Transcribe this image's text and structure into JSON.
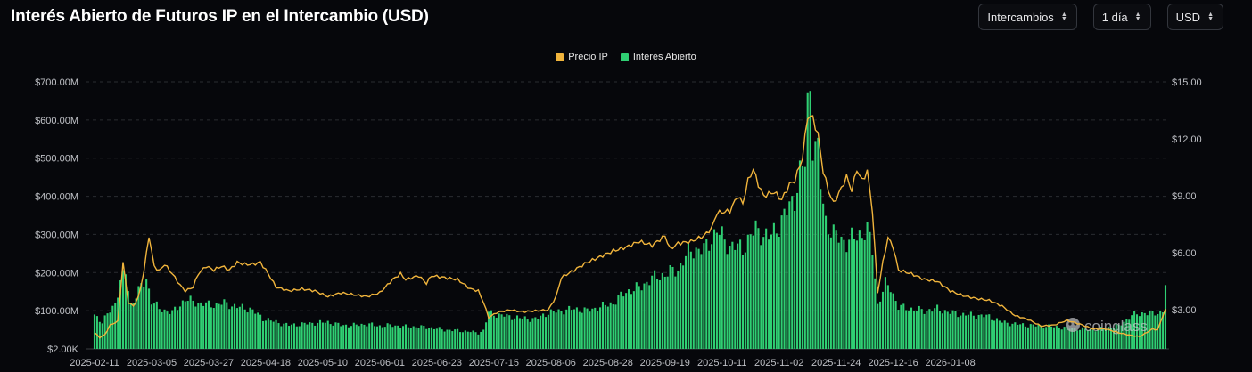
{
  "header": {
    "title": "Interés Abierto de Futuros IP en el Intercambio (USD)",
    "controls": [
      {
        "label": "Intercambios"
      },
      {
        "label": "1 día"
      },
      {
        "label": "USD"
      }
    ]
  },
  "watermark": "coinglass",
  "colors": {
    "price": "#f0b43c",
    "oi": "#2fcf73",
    "grid": "#2a2c31",
    "background": "#06070b"
  },
  "chart_data": {
    "type": "bar",
    "title": "Interés Abierto de Futuros IP en el Intercambio (USD)",
    "legend": {
      "position": "top-center",
      "entries": [
        "Precio IP",
        "Interés Abierto"
      ]
    },
    "x_ticks": [
      "2025-02-11",
      "2025-03-05",
      "2025-03-27",
      "2025-04-18",
      "2025-05-10",
      "2025-06-01",
      "2025-06-23",
      "2025-07-15",
      "2025-08-06",
      "2025-08-28",
      "2025-09-19",
      "2025-10-11",
      "2025-11-02",
      "2025-11-24",
      "2025-12-16",
      "2026-01-08"
    ],
    "y_left_ticks": [
      "$2.00K",
      "$100.00M",
      "$200.00M",
      "$300.00M",
      "$400.00M",
      "$500.00M",
      "$600.00M",
      "$700.00M"
    ],
    "y_right_ticks": [
      "$3.00",
      "$6.00",
      "$9.00",
      "$12.00",
      "$15.00"
    ],
    "y_left_range": [
      0,
      700
    ],
    "y_left_unit": "USD millions",
    "y_right_range": [
      0.95,
      15
    ],
    "grid": true,
    "series": [
      {
        "name": "Interés Abierto",
        "kind": "bar",
        "axis": "left",
        "keypoints": [
          [
            0,
            90
          ],
          [
            3,
            70
          ],
          [
            6,
            100
          ],
          [
            8,
            120
          ],
          [
            10,
            175
          ],
          [
            12,
            200
          ],
          [
            14,
            115
          ],
          [
            16,
            140
          ],
          [
            20,
            185
          ],
          [
            22,
            125
          ],
          [
            25,
            105
          ],
          [
            30,
            95
          ],
          [
            35,
            130
          ],
          [
            40,
            120
          ],
          [
            45,
            115
          ],
          [
            50,
            120
          ],
          [
            55,
            110
          ],
          [
            60,
            105
          ],
          [
            65,
            80
          ],
          [
            70,
            70
          ],
          [
            75,
            62
          ],
          [
            80,
            65
          ],
          [
            85,
            68
          ],
          [
            90,
            70
          ],
          [
            95,
            62
          ],
          [
            100,
            62
          ],
          [
            105,
            65
          ],
          [
            110,
            60
          ],
          [
            115,
            62
          ],
          [
            120,
            58
          ],
          [
            125,
            58
          ],
          [
            130,
            55
          ],
          [
            135,
            50
          ],
          [
            140,
            48
          ],
          [
            145,
            45
          ],
          [
            148,
            42
          ],
          [
            150,
            48
          ],
          [
            152,
            95
          ],
          [
            155,
            90
          ],
          [
            160,
            85
          ],
          [
            165,
            80
          ],
          [
            170,
            78
          ],
          [
            175,
            95
          ],
          [
            180,
            100
          ],
          [
            185,
            105
          ],
          [
            190,
            100
          ],
          [
            195,
            110
          ],
          [
            200,
            120
          ],
          [
            205,
            150
          ],
          [
            210,
            160
          ],
          [
            215,
            185
          ],
          [
            220,
            195
          ],
          [
            225,
            210
          ],
          [
            230,
            260
          ],
          [
            235,
            260
          ],
          [
            240,
            310
          ],
          [
            245,
            270
          ],
          [
            250,
            265
          ],
          [
            255,
            315
          ],
          [
            260,
            290
          ],
          [
            265,
            335
          ],
          [
            270,
            400
          ],
          [
            272,
            455
          ],
          [
            274,
            490
          ],
          [
            275,
            640
          ],
          [
            276,
            690
          ],
          [
            277,
            550
          ],
          [
            279,
            510
          ],
          [
            280,
            430
          ],
          [
            282,
            335
          ],
          [
            285,
            300
          ],
          [
            290,
            280
          ],
          [
            295,
            300
          ],
          [
            298,
            310
          ],
          [
            300,
            260
          ],
          [
            302,
            115
          ],
          [
            305,
            170
          ],
          [
            307,
            160
          ],
          [
            310,
            110
          ],
          [
            315,
            105
          ],
          [
            320,
            100
          ],
          [
            325,
            105
          ],
          [
            330,
            95
          ],
          [
            335,
            90
          ],
          [
            340,
            88
          ],
          [
            345,
            85
          ],
          [
            350,
            70
          ],
          [
            355,
            65
          ],
          [
            360,
            62
          ],
          [
            365,
            60
          ],
          [
            370,
            58
          ],
          [
            375,
            55
          ],
          [
            380,
            52
          ],
          [
            385,
            50
          ],
          [
            390,
            55
          ],
          [
            395,
            60
          ],
          [
            400,
            88
          ],
          [
            405,
            95
          ],
          [
            408,
            92
          ],
          [
            410,
            95
          ],
          [
            412,
            100
          ],
          [
            413,
            170
          ]
        ]
      },
      {
        "name": "Precio IP",
        "kind": "line",
        "axis": "right",
        "keypoints": [
          [
            0,
            1.8
          ],
          [
            2,
            1.55
          ],
          [
            4,
            1.7
          ],
          [
            6,
            2.2
          ],
          [
            9,
            2.4
          ],
          [
            11,
            5.5
          ],
          [
            13,
            3.4
          ],
          [
            15,
            3.2
          ],
          [
            17,
            3.7
          ],
          [
            19,
            5.0
          ],
          [
            21,
            6.9
          ],
          [
            23,
            5.3
          ],
          [
            25,
            5.05
          ],
          [
            27,
            5.4
          ],
          [
            30,
            4.9
          ],
          [
            33,
            4.3
          ],
          [
            35,
            4.0
          ],
          [
            38,
            4.2
          ],
          [
            40,
            4.9
          ],
          [
            43,
            5.3
          ],
          [
            46,
            5.1
          ],
          [
            49,
            5.3
          ],
          [
            52,
            5.1
          ],
          [
            55,
            5.5
          ],
          [
            58,
            5.4
          ],
          [
            61,
            5.4
          ],
          [
            64,
            5.5
          ],
          [
            67,
            4.9
          ],
          [
            70,
            4.2
          ],
          [
            75,
            4.0
          ],
          [
            80,
            4.1
          ],
          [
            85,
            4.0
          ],
          [
            90,
            3.7
          ],
          [
            95,
            3.9
          ],
          [
            100,
            3.8
          ],
          [
            105,
            3.7
          ],
          [
            110,
            3.9
          ],
          [
            115,
            4.6
          ],
          [
            118,
            4.9
          ],
          [
            120,
            4.6
          ],
          [
            125,
            4.8
          ],
          [
            128,
            4.4
          ],
          [
            130,
            4.8
          ],
          [
            135,
            4.7
          ],
          [
            140,
            4.6
          ],
          [
            145,
            4.1
          ],
          [
            148,
            4.0
          ],
          [
            150,
            3.4
          ],
          [
            152,
            2.6
          ],
          [
            155,
            2.85
          ],
          [
            160,
            3.0
          ],
          [
            165,
            2.9
          ],
          [
            170,
            2.95
          ],
          [
            175,
            3.0
          ],
          [
            178,
            3.7
          ],
          [
            180,
            4.7
          ],
          [
            185,
            5.1
          ],
          [
            190,
            5.5
          ],
          [
            195,
            5.8
          ],
          [
            200,
            6.1
          ],
          [
            205,
            6.3
          ],
          [
            210,
            6.6
          ],
          [
            215,
            6.4
          ],
          [
            220,
            6.9
          ],
          [
            222,
            6.2
          ],
          [
            225,
            6.5
          ],
          [
            230,
            6.6
          ],
          [
            235,
            6.9
          ],
          [
            238,
            7.3
          ],
          [
            240,
            8.1
          ],
          [
            245,
            8.2
          ],
          [
            248,
            9.0
          ],
          [
            250,
            8.6
          ],
          [
            252,
            9.8
          ],
          [
            254,
            10.4
          ],
          [
            256,
            9.6
          ],
          [
            258,
            9.0
          ],
          [
            262,
            9.2
          ],
          [
            265,
            8.8
          ],
          [
            268,
            9.6
          ],
          [
            270,
            9.8
          ],
          [
            273,
            11.0
          ],
          [
            275,
            13.2
          ],
          [
            277,
            13.1
          ],
          [
            279,
            12.2
          ],
          [
            281,
            10.3
          ],
          [
            283,
            9.3
          ],
          [
            285,
            8.6
          ],
          [
            288,
            9.4
          ],
          [
            290,
            10.0
          ],
          [
            292,
            9.3
          ],
          [
            294,
            10.4
          ],
          [
            296,
            9.8
          ],
          [
            298,
            10.3
          ],
          [
            300,
            8.2
          ],
          [
            302,
            3.9
          ],
          [
            304,
            5.5
          ],
          [
            306,
            6.8
          ],
          [
            308,
            6.3
          ],
          [
            310,
            5.1
          ],
          [
            315,
            4.9
          ],
          [
            320,
            4.6
          ],
          [
            325,
            4.5
          ],
          [
            330,
            4.0
          ],
          [
            335,
            3.75
          ],
          [
            340,
            3.6
          ],
          [
            345,
            3.5
          ],
          [
            350,
            3.2
          ],
          [
            355,
            2.7
          ],
          [
            360,
            2.5
          ],
          [
            365,
            2.15
          ],
          [
            370,
            2.2
          ],
          [
            375,
            2.45
          ],
          [
            380,
            2.25
          ],
          [
            385,
            2.0
          ],
          [
            390,
            2.0
          ],
          [
            395,
            1.8
          ],
          [
            400,
            1.65
          ],
          [
            403,
            1.6
          ],
          [
            405,
            1.75
          ],
          [
            408,
            2.0
          ],
          [
            410,
            1.95
          ],
          [
            412,
            2.7
          ],
          [
            413,
            3.0
          ]
        ]
      }
    ]
  }
}
